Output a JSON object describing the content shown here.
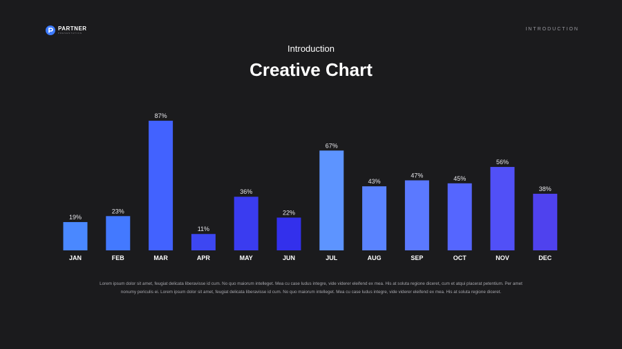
{
  "header": {
    "brand_name": "PARTNER",
    "brand_tagline": "PRESENTATION",
    "nav_label": "INTRODUCTION",
    "brand_color": "#3d7bff"
  },
  "slide": {
    "subtitle": "Introduction",
    "title": "Creative Chart",
    "description": "Lorem ipsum dolor sit amet, feugiat delicata liberavisse id cum. No quo maiorum intelleget. Mea cu case ludus integre, vide viderer eleifend ex mea. His at soluta regione diceret, cum et atqui placerat petentium. Per amet nonumy periculis ei. Lorem ipsum dolor sit amet, feugiat delicata liberavisse id cum. No quo maiorum intelleget. Mea cu case ludus integre, vide viderer eleifend ex mea. His at soluta regione diceret."
  },
  "chart_data": {
    "type": "bar",
    "title": "",
    "xlabel": "",
    "ylabel": "",
    "ylim": [
      0,
      100
    ],
    "grid": false,
    "categories": [
      "JAN",
      "FEB",
      "MAR",
      "APR",
      "MAY",
      "JUN",
      "JUL",
      "AUG",
      "SEP",
      "OCT",
      "NOV",
      "DEC"
    ],
    "values": [
      19,
      23,
      87,
      11,
      36,
      22,
      67,
      43,
      47,
      45,
      56,
      38
    ],
    "value_labels": [
      "19%",
      "23%",
      "87%",
      "11%",
      "36%",
      "22%",
      "67%",
      "43%",
      "47%",
      "45%",
      "56%",
      "38%"
    ],
    "colors": [
      "#4a88ff",
      "#4379ff",
      "#4262ff",
      "#3d47f2",
      "#3a3cf0",
      "#3330ec",
      "#5d94ff",
      "#5a83ff",
      "#5b79ff",
      "#5566ff",
      "#5150f7",
      "#4f42ee"
    ]
  }
}
